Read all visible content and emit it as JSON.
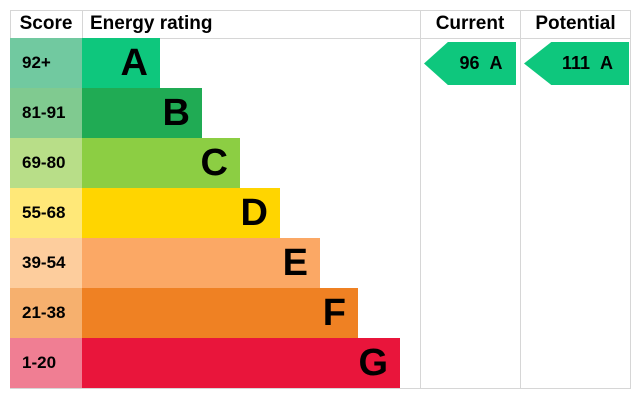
{
  "header": {
    "score": "Score",
    "energy_rating": "Energy rating",
    "current": "Current",
    "potential": "Potential"
  },
  "bands": [
    {
      "score": "92+",
      "letter": "A",
      "bar_color": "#0ec77d",
      "score_color": "#71c9a0"
    },
    {
      "score": "81-91",
      "letter": "B",
      "bar_color": "#20ab54",
      "score_color": "#80ca90"
    },
    {
      "score": "69-80",
      "letter": "C",
      "bar_color": "#8cce43",
      "score_color": "#b8de88"
    },
    {
      "score": "55-68",
      "letter": "D",
      "bar_color": "#ffd500",
      "score_color": "#ffe878"
    },
    {
      "score": "39-54",
      "letter": "E",
      "bar_color": "#fba865",
      "score_color": "#fdcd9d"
    },
    {
      "score": "21-38",
      "letter": "F",
      "bar_color": "#ef8123",
      "score_color": "#f6b06e"
    },
    {
      "score": "1-20",
      "letter": "G",
      "bar_color": "#e9153b",
      "score_color": "#f07e93"
    }
  ],
  "current": {
    "value": "96",
    "letter": "A",
    "arrow_color": "#0ec77d"
  },
  "potential": {
    "value": "111",
    "letter": "A",
    "arrow_color": "#0ec77d"
  },
  "colors": {
    "grid_line": "#d6d6d6",
    "text": "#000000",
    "background": "#ffffff"
  },
  "chart_data": {
    "type": "bar",
    "title": "Energy rating",
    "categories": [
      "A",
      "B",
      "C",
      "D",
      "E",
      "F",
      "G"
    ],
    "score_ranges": [
      "92+",
      "81-91",
      "69-80",
      "55-68",
      "39-54",
      "21-38",
      "1-20"
    ],
    "bar_colors": [
      "#0ec77d",
      "#20ab54",
      "#8cce43",
      "#ffd500",
      "#fba865",
      "#ef8123",
      "#e9153b"
    ],
    "current": {
      "score": 96,
      "rating": "A"
    },
    "potential": {
      "score": 111,
      "rating": "A"
    },
    "legend_position": "none",
    "grid": false
  }
}
